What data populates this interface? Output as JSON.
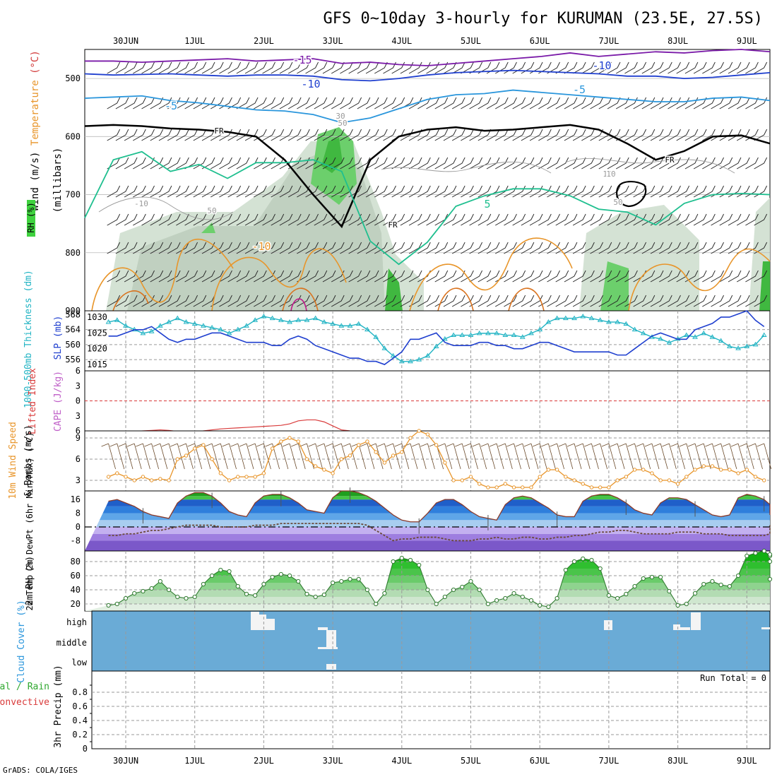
{
  "title": "GFS 0~10day 3-hourly for KURUMAN (23.5E, 27.5S)",
  "credit": "GrADS: COLA/IGES",
  "run_total": "Run Total = 0",
  "colors": {
    "line_blue": "#1f3fcf",
    "line_cyan": "#22b4c4",
    "line_orange": "#e8952a",
    "rh_green": "#3fd23f",
    "cloud_blue": "#6aabd6",
    "lifted_red": "#d93a3a",
    "cape_violet": "#c060c8",
    "grid": "#aaaaaa"
  },
  "chart_data": [
    {
      "id": "upper-air",
      "type": "heatmap",
      "x_labels": [
        "30JUN",
        "1JUL",
        "2JUL",
        "3JUL",
        "4JUL",
        "5JUL",
        "6JUL",
        "7JUL",
        "8JUL",
        "9JUL"
      ],
      "ylabel": "(millibars)",
      "ylabel_parts": [
        {
          "text": "Wind (m/s)",
          "color": "#000000"
        },
        {
          "text": "Temperature",
          "color": "#e8952a"
        },
        {
          "text": "(°C)",
          "color": "#d23a3a"
        }
      ],
      "rh_label": "RH (%)",
      "y_ticks": [
        "500",
        "600",
        "700",
        "800",
        "900"
      ],
      "ylim": [
        450,
        900
      ],
      "contour_labels": [
        "-15",
        "-10",
        "-10",
        "-5",
        "-5",
        "5",
        "-10",
        "FR",
        "FR",
        "FR",
        "10",
        "-10",
        "30",
        "50",
        "50",
        "10",
        "50"
      ],
      "series": [
        {
          "values": [
            470,
            470,
            472,
            470,
            468,
            466,
            470,
            468,
            466,
            474,
            472,
            476,
            478,
            474,
            470,
            466,
            462,
            456,
            462,
            458,
            454,
            456,
            452,
            450,
            454
          ]
        },
        {
          "values": [
            492,
            494,
            493,
            492,
            494,
            496,
            494,
            494,
            496,
            502,
            504,
            500,
            494,
            490,
            488,
            486,
            488,
            490,
            492,
            496,
            496,
            500,
            498,
            494,
            490
          ]
        },
        {
          "values": [
            534,
            532,
            530,
            538,
            542,
            548,
            554,
            556,
            562,
            576,
            568,
            552,
            536,
            528,
            526,
            520,
            524,
            528,
            532,
            536,
            540,
            540,
            534,
            532,
            538
          ]
        },
        {
          "values": [
            582,
            580,
            582,
            586,
            588,
            592,
            600,
            640,
            700,
            755,
            640,
            600,
            588,
            584,
            590,
            588,
            584,
            580,
            588,
            612,
            640,
            625,
            600,
            598,
            612
          ]
        },
        {
          "values": [
            740,
            640,
            626,
            660,
            648,
            672,
            645,
            645,
            640,
            660,
            780,
            820,
            782,
            720,
            702,
            690,
            690,
            702,
            725,
            730,
            752,
            715,
            700,
            698,
            700
          ]
        }
      ]
    },
    {
      "id": "thickness-slp",
      "type": "line",
      "y_ticks_left": [
        "568",
        "564",
        "560",
        "556"
      ],
      "y_ticks_right": [
        "1030",
        "1025",
        "1020",
        "1015"
      ],
      "ylabel_left": "1000-500mb Thickness (dm)",
      "ylabel_right": "SLP (mb)",
      "x": [
        0,
        1,
        2,
        3,
        4,
        5,
        6,
        7,
        8,
        9,
        10,
        11,
        12,
        13,
        14,
        15,
        16,
        17,
        18,
        19,
        20,
        21,
        22,
        23,
        24,
        25,
        26,
        27,
        28,
        29,
        30,
        31,
        32,
        33,
        34,
        35,
        36,
        37,
        38,
        39,
        40,
        41,
        42,
        43,
        44,
        45,
        46,
        47,
        48,
        49,
        50,
        51,
        52,
        53,
        54,
        55,
        56,
        57,
        58,
        59,
        60,
        61,
        62,
        63,
        64,
        65,
        66,
        67,
        68,
        69,
        70,
        71,
        72,
        73,
        74,
        75,
        76,
        77,
        78,
        79,
        80
      ],
      "series": [
        {
          "name": "Thickness",
          "values": [
            566,
            566.5,
            565,
            564,
            563,
            563.5,
            565,
            566,
            567,
            566,
            565.5,
            565,
            564.5,
            564,
            563,
            564,
            565,
            566.5,
            567.5,
            567,
            566.5,
            566,
            566.5,
            566.5,
            567,
            566,
            565.5,
            565,
            565,
            565.5,
            564,
            562,
            559,
            557,
            555.5,
            555.5,
            556,
            557,
            559.5,
            561.5,
            562.5,
            562.5,
            562.5,
            563,
            563,
            563,
            562.5,
            562.5,
            562,
            563,
            564,
            566,
            567,
            567,
            567,
            567.5,
            567,
            566.5,
            566,
            566,
            565.5,
            564,
            563,
            562,
            561.5,
            560.5,
            561.5,
            562.5,
            562,
            563,
            562,
            561,
            559.5,
            559,
            559.5,
            560,
            562.5,
            565,
            565.5,
            565.5,
            564
          ]
        },
        {
          "name": "SLP",
          "values": [
            1024,
            1024,
            1025,
            1026,
            1026,
            1027,
            1025,
            1023,
            1022,
            1023,
            1023,
            1024,
            1025,
            1025,
            1024,
            1023,
            1022,
            1022,
            1022,
            1021,
            1021,
            1023,
            1024,
            1023,
            1021,
            1020,
            1019,
            1018,
            1017,
            1017,
            1016,
            1016,
            1015,
            1017,
            1019,
            1023,
            1023,
            1024,
            1025,
            1022,
            1021,
            1021,
            1021,
            1022,
            1022,
            1021,
            1021,
            1020,
            1020,
            1021,
            1022,
            1022,
            1021,
            1020,
            1019,
            1019,
            1019,
            1019,
            1019,
            1018,
            1018,
            1020,
            1022,
            1024,
            1025,
            1024,
            1023,
            1023,
            1026,
            1027,
            1028,
            1030,
            1030,
            1031,
            1032,
            1029,
            1027,
            1025,
            1025,
            1025,
            1027
          ]
        }
      ]
    },
    {
      "id": "lifted-cape",
      "type": "line",
      "y_ticks": [
        "6",
        "3",
        "0",
        "3",
        "6"
      ],
      "ylabel_parts": [
        {
          "text": "Lifted Index",
          "color": "#d93a3a"
        },
        {
          "text": "CAPE (J/kg)",
          "color": "#c060c8"
        }
      ],
      "ylim": [
        -6,
        6
      ],
      "series": [
        {
          "name": "Lifted Index",
          "values": [
            6.4,
            6.3,
            6.2,
            6.1,
            6.0,
            5.9,
            5.8,
            5.9,
            6.1,
            6.3,
            6.2,
            6.0,
            5.8,
            5.6,
            5.5,
            5.4,
            5.3,
            5.2,
            5.1,
            5.0,
            4.9,
            4.6,
            4.0,
            3.8,
            3.8,
            4.2,
            5.0,
            5.8,
            6.0,
            6.1
          ]
        }
      ]
    },
    {
      "id": "wind10m",
      "type": "line",
      "ylabel_parts": [
        {
          "text": "10m Wind Speed",
          "color": "#e8952a"
        },
        {
          "text": "& Barbs (m/s)",
          "color": "#000000"
        }
      ],
      "y_ticks": [
        "9",
        "6",
        "3"
      ],
      "ylim": [
        1.5,
        10
      ],
      "series": [
        {
          "name": "10m Wind Speed",
          "values": [
            3.5,
            4.0,
            3.5,
            3.0,
            3.5,
            3.0,
            3.2,
            3.0,
            6.0,
            6.5,
            7.5,
            8.0,
            6.0,
            4.0,
            3.0,
            3.5,
            3.5,
            3.5,
            4.0,
            7.5,
            8.5,
            9.0,
            8.5,
            6.0,
            5.0,
            4.5,
            4.0,
            6.0,
            6.5,
            8.0,
            8.5,
            7.0,
            5.5,
            6.5,
            7.0,
            9.0,
            10.0,
            9.5,
            8.0,
            5.5,
            3.0,
            3.0,
            3.5,
            2.5,
            2.0,
            2.0,
            2.5,
            2.0,
            2.0,
            2.0,
            3.5,
            4.5,
            4.5,
            3.5,
            3.0,
            2.5,
            2.0,
            2.0,
            2.0,
            3.0,
            3.5,
            4.5,
            4.5,
            4.0,
            3.0,
            3.0,
            2.5,
            3.5,
            4.5,
            5.0,
            5.0,
            4.5,
            4.5,
            4.0,
            4.5,
            3.5,
            3.0,
            3.0,
            2.5,
            3.0,
            3.5
          ]
        }
      ]
    },
    {
      "id": "temp2m",
      "type": "area",
      "ylabel": "2m Temp 2m DewPt (6hr Min/Max) (°C)",
      "y_ticks": [
        "16",
        "8",
        "0",
        "-8"
      ],
      "ylim": [
        -14,
        21
      ],
      "series": [
        {
          "name": "2m Temp",
          "values": [
            15,
            16,
            14,
            12,
            9,
            7,
            6,
            5,
            14,
            18,
            20,
            20,
            18,
            14,
            9,
            7,
            6,
            14,
            18,
            19,
            19,
            17,
            14,
            10,
            9,
            8,
            17,
            21,
            21,
            20,
            18,
            15,
            11,
            7,
            4,
            3,
            3,
            8,
            14,
            16,
            16,
            13,
            9,
            6,
            5,
            4,
            13,
            17,
            18,
            17,
            14,
            11,
            7,
            6,
            6,
            15,
            18,
            19,
            19,
            17,
            14,
            10,
            8,
            7,
            14,
            17,
            17,
            16,
            13,
            10,
            7,
            6,
            7,
            17,
            19,
            18,
            16,
            13,
            10,
            8,
            7
          ]
        },
        {
          "name": "2m DewPt",
          "values": [
            -5,
            -5,
            -4,
            -4,
            -3,
            -2,
            -2,
            -1,
            0,
            1,
            1,
            1,
            1,
            0,
            0,
            0,
            0,
            1,
            1,
            1,
            2,
            2,
            2,
            2,
            2,
            2,
            2,
            2,
            2,
            2,
            1,
            -2,
            -5,
            -8,
            -7,
            -7,
            -6,
            -6,
            -6,
            -7,
            -8,
            -8,
            -8,
            -7,
            -7,
            -6,
            -7,
            -7,
            -6,
            -6,
            -7,
            -7,
            -6,
            -6,
            -5,
            -5,
            -4,
            -3,
            -3,
            -2,
            -2,
            -3,
            -4,
            -4,
            -4,
            -4,
            -3,
            -3,
            -3,
            -4,
            -4,
            -4,
            -5,
            -5,
            -5,
            -5,
            -5,
            -4,
            -4,
            -3,
            1
          ]
        }
      ]
    },
    {
      "id": "rh2m",
      "type": "area",
      "ylabel": "2m RH (%)",
      "y_ticks": [
        "80",
        "60",
        "40",
        "20"
      ],
      "ylim": [
        10,
        95
      ],
      "series": [
        {
          "name": "2m RH",
          "values": [
            18,
            20,
            28,
            35,
            38,
            42,
            52,
            40,
            30,
            28,
            30,
            48,
            60,
            68,
            66,
            45,
            34,
            32,
            48,
            58,
            62,
            60,
            52,
            34,
            30,
            33,
            50,
            52,
            55,
            55,
            40,
            20,
            35,
            80,
            85,
            82,
            75,
            40,
            20,
            30,
            40,
            44,
            52,
            40,
            20,
            25,
            28,
            35,
            30,
            25,
            18,
            16,
            28,
            68,
            80,
            84,
            82,
            70,
            32,
            28,
            34,
            45,
            56,
            58,
            58,
            38,
            18,
            20,
            35,
            48,
            52,
            47,
            45,
            60,
            88,
            92,
            95,
            88,
            80,
            55,
            90
          ]
        }
      ]
    },
    {
      "id": "cloud-cover",
      "type": "heatmap",
      "ylabel": "Cloud Cover (%)",
      "y_ticks": [
        "high",
        "middle",
        "low"
      ]
    },
    {
      "id": "precip",
      "type": "bar",
      "ylabel_parts": [
        {
          "text": "Total / Rain",
          "color": "#2fa82f"
        },
        {
          "text": "Convective",
          "color": "#d93a3a"
        },
        {
          "text": "3hr Precip (mm)",
          "color": "#000000"
        }
      ],
      "y_ticks": [
        "0.8",
        "0.6",
        "0.4",
        "0.2",
        "0"
      ],
      "ylim": [
        0,
        1
      ],
      "series": [
        {
          "name": "Total",
          "values": [
            0,
            0,
            0,
            0,
            0,
            0,
            0,
            0,
            0,
            0
          ]
        }
      ]
    }
  ]
}
